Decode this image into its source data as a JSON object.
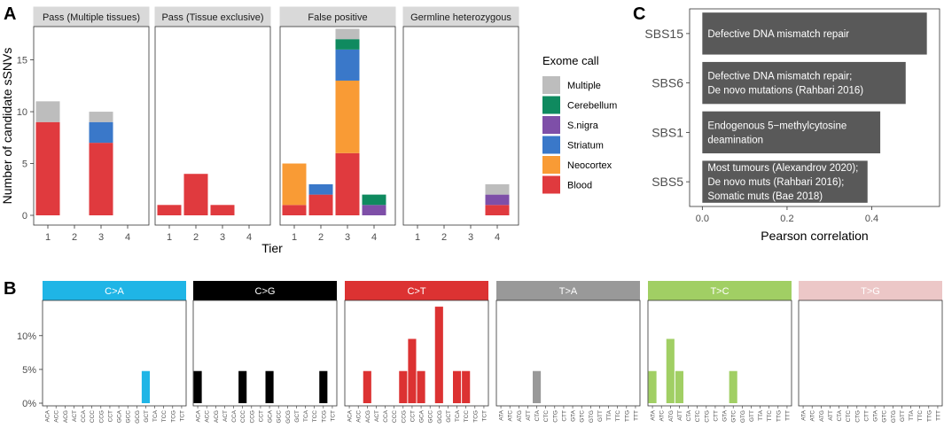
{
  "panel_labels": {
    "a": "A",
    "b": "B",
    "c": "C"
  },
  "colors": {
    "Multiple": "#bdbdbd",
    "Cerebellum": "#0f8a5f",
    "S.nigra": "#7e4fa8",
    "Striatum": "#3a78c9",
    "Neocortex": "#f99b35",
    "Blood": "#e03a3e",
    "strip_bg": "#d9d9d9",
    "axis": "#333333",
    "corr_bar": "#595959"
  },
  "chart_data": [
    {
      "id": "A",
      "type": "bar",
      "stacked": true,
      "title": "",
      "xlabel": "Tier",
      "ylabel": "Number of candidate sSNVs",
      "ylim": [
        0,
        19
      ],
      "yticks": [
        0,
        5,
        10,
        15
      ],
      "categories": [
        "1",
        "2",
        "3",
        "4"
      ],
      "legend": {
        "title": "Exome call",
        "position": "right",
        "entries": [
          "Multiple",
          "Cerebellum",
          "S.nigra",
          "Striatum",
          "Neocortex",
          "Blood"
        ]
      },
      "stack_order": [
        "Blood",
        "Neocortex",
        "Striatum",
        "S.nigra",
        "Cerebellum",
        "Multiple"
      ],
      "facets": [
        {
          "label": "Pass (Multiple tissues)",
          "series": [
            {
              "name": "Blood",
              "values": [
                9,
                0,
                7,
                0
              ]
            },
            {
              "name": "Neocortex",
              "values": [
                0,
                0,
                0,
                0
              ]
            },
            {
              "name": "Striatum",
              "values": [
                0,
                0,
                2,
                0
              ]
            },
            {
              "name": "S.nigra",
              "values": [
                0,
                0,
                0,
                0
              ]
            },
            {
              "name": "Cerebellum",
              "values": [
                0,
                0,
                0,
                0
              ]
            },
            {
              "name": "Multiple",
              "values": [
                2,
                0,
                1,
                0
              ]
            }
          ]
        },
        {
          "label": "Pass (Tissue exclusive)",
          "series": [
            {
              "name": "Blood",
              "values": [
                1,
                4,
                1,
                0
              ]
            },
            {
              "name": "Neocortex",
              "values": [
                0,
                0,
                0,
                0
              ]
            },
            {
              "name": "Striatum",
              "values": [
                0,
                0,
                0,
                0
              ]
            },
            {
              "name": "S.nigra",
              "values": [
                0,
                0,
                0,
                0
              ]
            },
            {
              "name": "Cerebellum",
              "values": [
                0,
                0,
                0,
                0
              ]
            },
            {
              "name": "Multiple",
              "values": [
                0,
                0,
                0,
                0
              ]
            }
          ]
        },
        {
          "label": "False positive",
          "series": [
            {
              "name": "Blood",
              "values": [
                1,
                2,
                6,
                0
              ]
            },
            {
              "name": "Neocortex",
              "values": [
                4,
                0,
                7,
                0
              ]
            },
            {
              "name": "Striatum",
              "values": [
                0,
                1,
                3,
                0
              ]
            },
            {
              "name": "S.nigra",
              "values": [
                0,
                0,
                0,
                1
              ]
            },
            {
              "name": "Cerebellum",
              "values": [
                0,
                0,
                1,
                1
              ]
            },
            {
              "name": "Multiple",
              "values": [
                0,
                0,
                1,
                0
              ]
            }
          ]
        },
        {
          "label": "Germline heterozygous",
          "series": [
            {
              "name": "Blood",
              "values": [
                0,
                0,
                0,
                1
              ]
            },
            {
              "name": "Neocortex",
              "values": [
                0,
                0,
                0,
                0
              ]
            },
            {
              "name": "Striatum",
              "values": [
                0,
                0,
                0,
                0
              ]
            },
            {
              "name": "S.nigra",
              "values": [
                0,
                0,
                0,
                1
              ]
            },
            {
              "name": "Cerebellum",
              "values": [
                0,
                0,
                0,
                0
              ]
            },
            {
              "name": "Multiple",
              "values": [
                0,
                0,
                0,
                1
              ]
            }
          ]
        }
      ]
    },
    {
      "id": "B",
      "type": "bar",
      "title": "",
      "xlabel": "",
      "ylabel": "",
      "ylim": [
        0,
        14.3
      ],
      "yticks": [
        0,
        5,
        10
      ],
      "ytick_labels": [
        "0%",
        "5%",
        "10%"
      ],
      "facets": [
        {
          "label": "C>A",
          "color": "#1fb5e6",
          "label_color": "#ffffff",
          "contexts": [
            "ACA",
            "ACC",
            "ACG",
            "ACT",
            "CCA",
            "CCC",
            "CCG",
            "CCT",
            "GCA",
            "GCC",
            "GCG",
            "GCT",
            "TCA",
            "TCC",
            "TCG",
            "TCT"
          ],
          "values": [
            0,
            0,
            0,
            0,
            0,
            0,
            0,
            0,
            0,
            0,
            0,
            4.76,
            0,
            0,
            0,
            0
          ]
        },
        {
          "label": "C>G",
          "color": "#000000",
          "label_color": "#ffffff",
          "contexts": [
            "ACA",
            "ACC",
            "ACG",
            "ACT",
            "CCA",
            "CCC",
            "CCG",
            "CCT",
            "GCA",
            "GCC",
            "GCG",
            "GCT",
            "TCA",
            "TCC",
            "TCG",
            "TCT"
          ],
          "values": [
            4.76,
            0,
            0,
            0,
            0,
            4.76,
            0,
            0,
            4.76,
            0,
            0,
            0,
            0,
            0,
            4.76,
            0
          ]
        },
        {
          "label": "C>T",
          "color": "#dc3232",
          "label_color": "#ffffff",
          "contexts": [
            "ACA",
            "ACC",
            "ACG",
            "ACT",
            "CCA",
            "CCC",
            "CCG",
            "CCT",
            "GCA",
            "GCC",
            "GCG",
            "GCT",
            "TCA",
            "TCC",
            "TCG",
            "TCT"
          ],
          "values": [
            0,
            0,
            4.76,
            0,
            0,
            0,
            4.76,
            9.52,
            4.76,
            0,
            14.29,
            0,
            4.76,
            4.76,
            0,
            0
          ]
        },
        {
          "label": "T>A",
          "color": "#999999",
          "label_color": "#ffffff",
          "contexts": [
            "ATA",
            "ATC",
            "ATG",
            "ATT",
            "CTA",
            "CTC",
            "CTG",
            "CTT",
            "GTA",
            "GTC",
            "GTG",
            "GTT",
            "TTA",
            "TTC",
            "TTG",
            "TTT"
          ],
          "values": [
            0,
            0,
            0,
            0,
            4.76,
            0,
            0,
            0,
            0,
            0,
            0,
            0,
            0,
            0,
            0,
            0
          ]
        },
        {
          "label": "T>C",
          "color": "#a1cf64",
          "label_color": "#ffffff",
          "contexts": [
            "ATA",
            "ATC",
            "ATG",
            "ATT",
            "CTA",
            "CTC",
            "CTG",
            "CTT",
            "GTA",
            "GTC",
            "GTG",
            "GTT",
            "TTA",
            "TTC",
            "TTG",
            "TTT"
          ],
          "values": [
            4.76,
            0,
            9.52,
            4.76,
            0,
            0,
            0,
            0,
            0,
            4.76,
            0,
            0,
            0,
            0,
            0,
            0
          ]
        },
        {
          "label": "T>G",
          "color": "#ecc7c7",
          "label_color": "#ffffff",
          "contexts": [
            "ATA",
            "ATC",
            "ATG",
            "ATT",
            "CTA",
            "CTC",
            "CTG",
            "CTT",
            "GTA",
            "GTC",
            "GTG",
            "GTT",
            "TTA",
            "TTC",
            "TTG",
            "TTT"
          ],
          "values": [
            0,
            0,
            0,
            0,
            0,
            0,
            0,
            0,
            0,
            0,
            0,
            0,
            0,
            0,
            0,
            0
          ]
        }
      ]
    },
    {
      "id": "C",
      "type": "bar",
      "orientation": "horizontal",
      "title": "",
      "xlabel": "Pearson correlation",
      "ylabel": "",
      "xlim": [
        -0.03,
        0.56
      ],
      "xticks": [
        0.0,
        0.2,
        0.4
      ],
      "xtick_labels": [
        "0.0",
        "0.2",
        "0.4"
      ],
      "categories": [
        "SBS15",
        "SBS6",
        "SBS1",
        "SBS5"
      ],
      "values": [
        0.53,
        0.48,
        0.42,
        0.39
      ],
      "annotations": [
        [
          "Defective DNA mismatch repair"
        ],
        [
          "Defective DNA mismatch repair;",
          "De novo mutations (Rahbari 2016)"
        ],
        [
          "Endogenous 5−methylcytosine",
          "deamination"
        ],
        [
          "Most tumours (Alexandrov 2020);",
          "De novo muts (Rahbari 2016);",
          "Somatic muts (Bae 2018)"
        ]
      ]
    }
  ]
}
